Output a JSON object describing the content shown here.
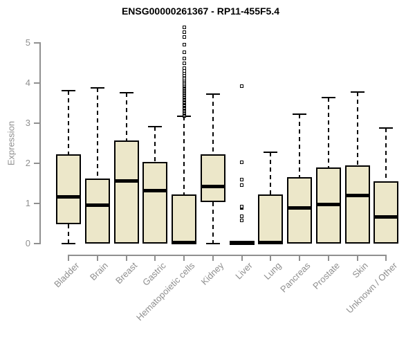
{
  "colors": {
    "box_fill": "#ece7c9",
    "box_border": "#000000",
    "axis": "#8f8f8f",
    "tick_text": "#8f8f8f",
    "title_text": "#000000"
  },
  "chart_data": {
    "type": "boxplot",
    "title": "ENSG00000261367 - RP11-455F5.4",
    "xlabel": "",
    "ylabel": "Expression",
    "ylim": [
      0,
      5.4
    ],
    "yticks": [
      0,
      1,
      2,
      3,
      4,
      5
    ],
    "grid": false,
    "legend": false,
    "categories": [
      "Bladder",
      "Brain",
      "Breast",
      "Gastric",
      "Hematopoietic cells",
      "Kidney",
      "Liver",
      "Lung",
      "Pancreas",
      "Prostate",
      "Skin",
      "Unknown / Other"
    ],
    "series": [
      {
        "name": "Bladder",
        "whisker_low": 0,
        "q1": 0.48,
        "median": 1.17,
        "q3": 2.22,
        "whisker_high": 3.8,
        "outliers": []
      },
      {
        "name": "Brain",
        "whisker_low": 0,
        "q1": 0,
        "median": 0.96,
        "q3": 1.61,
        "whisker_high": 3.88,
        "outliers": []
      },
      {
        "name": "Breast",
        "whisker_low": 0,
        "q1": 0,
        "median": 1.56,
        "q3": 2.57,
        "whisker_high": 3.75,
        "outliers": []
      },
      {
        "name": "Gastric",
        "whisker_low": 0,
        "q1": 0,
        "median": 1.31,
        "q3": 2.03,
        "whisker_high": 2.91,
        "outliers": []
      },
      {
        "name": "Hematopoietic cells",
        "whisker_low": 0,
        "q1": 0,
        "median": 0.02,
        "q3": 1.23,
        "whisker_high": 3.17,
        "outliers": [
          3.17,
          3.2,
          3.22,
          3.24,
          3.27,
          3.29,
          3.31,
          3.34,
          3.36,
          3.38,
          3.41,
          3.43,
          3.45,
          3.48,
          3.5,
          3.52,
          3.55,
          3.57,
          3.59,
          3.62,
          3.64,
          3.66,
          3.69,
          3.71,
          3.74,
          3.76,
          3.79,
          3.81,
          3.84,
          3.86,
          3.89,
          3.91,
          3.94,
          3.97,
          4.0,
          4.03,
          4.07,
          4.11,
          4.15,
          4.19,
          4.24,
          4.29,
          4.36,
          4.48,
          4.61,
          4.76,
          4.95,
          5.14,
          5.26,
          5.38
        ]
      },
      {
        "name": "Kidney",
        "whisker_low": 0,
        "q1": 1.03,
        "median": 1.42,
        "q3": 2.22,
        "whisker_high": 3.71,
        "outliers": []
      },
      {
        "name": "Liver",
        "whisker_low": 0,
        "q1": 0,
        "median": 0.02,
        "q3": 0.03,
        "whisker_high": 0.03,
        "outliers": [
          0.57,
          0.68,
          0.88,
          0.9,
          0.92,
          1.45,
          1.6,
          2.03,
          3.91
        ]
      },
      {
        "name": "Lung",
        "whisker_low": 0,
        "q1": 0,
        "median": 0.02,
        "q3": 1.23,
        "whisker_high": 2.27,
        "outliers": []
      },
      {
        "name": "Pancreas",
        "whisker_low": 0,
        "q1": 0,
        "median": 0.89,
        "q3": 1.66,
        "whisker_high": 3.21,
        "outliers": []
      },
      {
        "name": "Prostate",
        "whisker_low": 0,
        "q1": 0,
        "median": 0.98,
        "q3": 1.89,
        "whisker_high": 3.64,
        "outliers": []
      },
      {
        "name": "Skin",
        "whisker_low": 0,
        "q1": 0,
        "median": 1.2,
        "q3": 1.94,
        "whisker_high": 3.77,
        "outliers": []
      },
      {
        "name": "Unknown / Other",
        "whisker_low": 0,
        "q1": 0,
        "median": 0.66,
        "q3": 1.55,
        "whisker_high": 2.88,
        "outliers": []
      }
    ]
  }
}
